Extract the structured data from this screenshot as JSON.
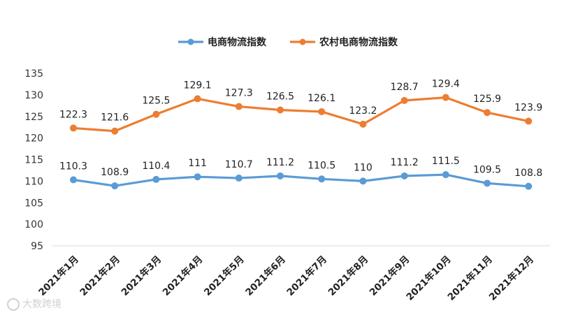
{
  "chart_data": {
    "type": "line",
    "title": "",
    "xlabel": "",
    "ylabel": "",
    "categories": [
      "2021年1月",
      "2021年2月",
      "2021年3月",
      "2021年4月",
      "2021年5月",
      "2021年6月",
      "2021年7月",
      "2021年8月",
      "2021年9月",
      "2021年10月",
      "2021年11月",
      "2021年12月"
    ],
    "series": [
      {
        "name": "电商物流指数",
        "color": "#5b9bd5",
        "values": [
          110.3,
          108.9,
          110.4,
          111,
          110.7,
          111.2,
          110.5,
          110,
          111.2,
          111.5,
          109.5,
          108.8
        ],
        "labels": [
          "110.3",
          "108.9",
          "110.4",
          "111",
          "110.7",
          "111.2",
          "110.5",
          "110",
          "111.2",
          "111.5",
          "109.5",
          "108.8"
        ]
      },
      {
        "name": "农村电商物流指数",
        "color": "#ed7d31",
        "values": [
          122.3,
          121.6,
          125.5,
          129.1,
          127.3,
          126.5,
          126.1,
          123.2,
          128.7,
          129.4,
          125.9,
          123.9
        ],
        "labels": [
          "122.3",
          "121.6",
          "125.5",
          "129.1",
          "127.3",
          "126.5",
          "126.1",
          "123.2",
          "128.7",
          "129.4",
          "125.9",
          "123.9"
        ]
      }
    ],
    "ylim": [
      95,
      135
    ],
    "yticks": [
      "95",
      "100",
      "105",
      "110",
      "115",
      "120",
      "125",
      "130",
      "135"
    ],
    "grid": false,
    "legend": "top-center"
  },
  "watermark": {
    "text": "大数跨境",
    "icon": "logo-icon"
  }
}
